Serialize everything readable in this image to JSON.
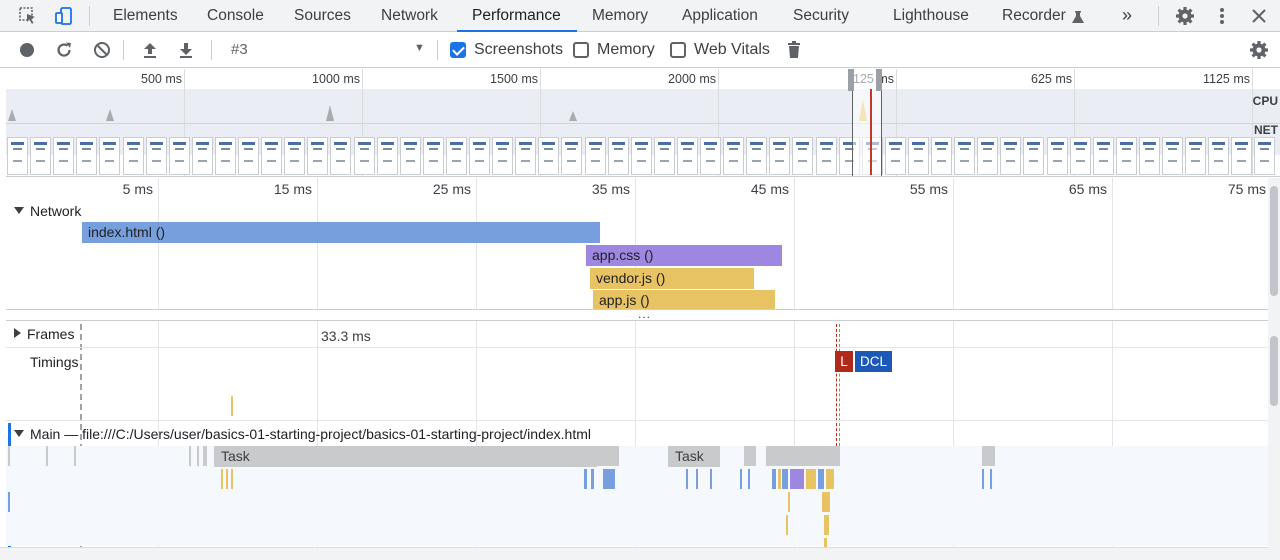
{
  "tabs": [
    "Elements",
    "Console",
    "Sources",
    "Network",
    "Performance",
    "Memory",
    "Application",
    "Security",
    "Lighthouse",
    "Recorder"
  ],
  "active_tab": "Performance",
  "more_tabs": "»",
  "toolbar": {
    "session": "#3",
    "checkboxes": [
      {
        "label": "Screenshots",
        "checked": true
      },
      {
        "label": "Memory",
        "checked": false
      },
      {
        "label": "Web Vitals",
        "checked": false
      }
    ]
  },
  "overview": {
    "ticks": [
      "500 ms",
      "1000 ms",
      "1500 ms",
      "2000 ms",
      "125 ms",
      "625 ms",
      "1125 ms"
    ],
    "cpu_label": "CPU",
    "net_label": "NET"
  },
  "flamechart": {
    "ticks": [
      "5 ms",
      "15 ms",
      "25 ms",
      "35 ms",
      "45 ms",
      "55 ms",
      "65 ms",
      "75 ms"
    ],
    "network_label": "Network",
    "requests": [
      {
        "label": "index.html ()",
        "color": "#779fde"
      },
      {
        "label": "app.css ()",
        "color": "#9e87e0"
      },
      {
        "label": "vendor.js ()",
        "color": "#e8c363"
      },
      {
        "label": "app.js ()",
        "color": "#e8c363"
      }
    ],
    "more_indicator": "...",
    "frames_label": "Frames",
    "frames_duration": "33.3 ms",
    "timings_label": "Timings",
    "timing_markers": [
      {
        "label": "L",
        "color": "#b02a1a"
      },
      {
        "label": "DCL",
        "color": "#1c58b8"
      }
    ],
    "main_label": "Main",
    "main_separator": "—",
    "main_url": "file:///C:/Users/user/basics-01-starting-project/basics-01-starting-project/index.html",
    "tasks": [
      "Task",
      "Task"
    ]
  },
  "colors": {
    "accent": "#1a73e8",
    "scripting": "#e8c363",
    "rendering": "#9e87e0",
    "loading": "#779fde",
    "task": "#c9cacb"
  }
}
